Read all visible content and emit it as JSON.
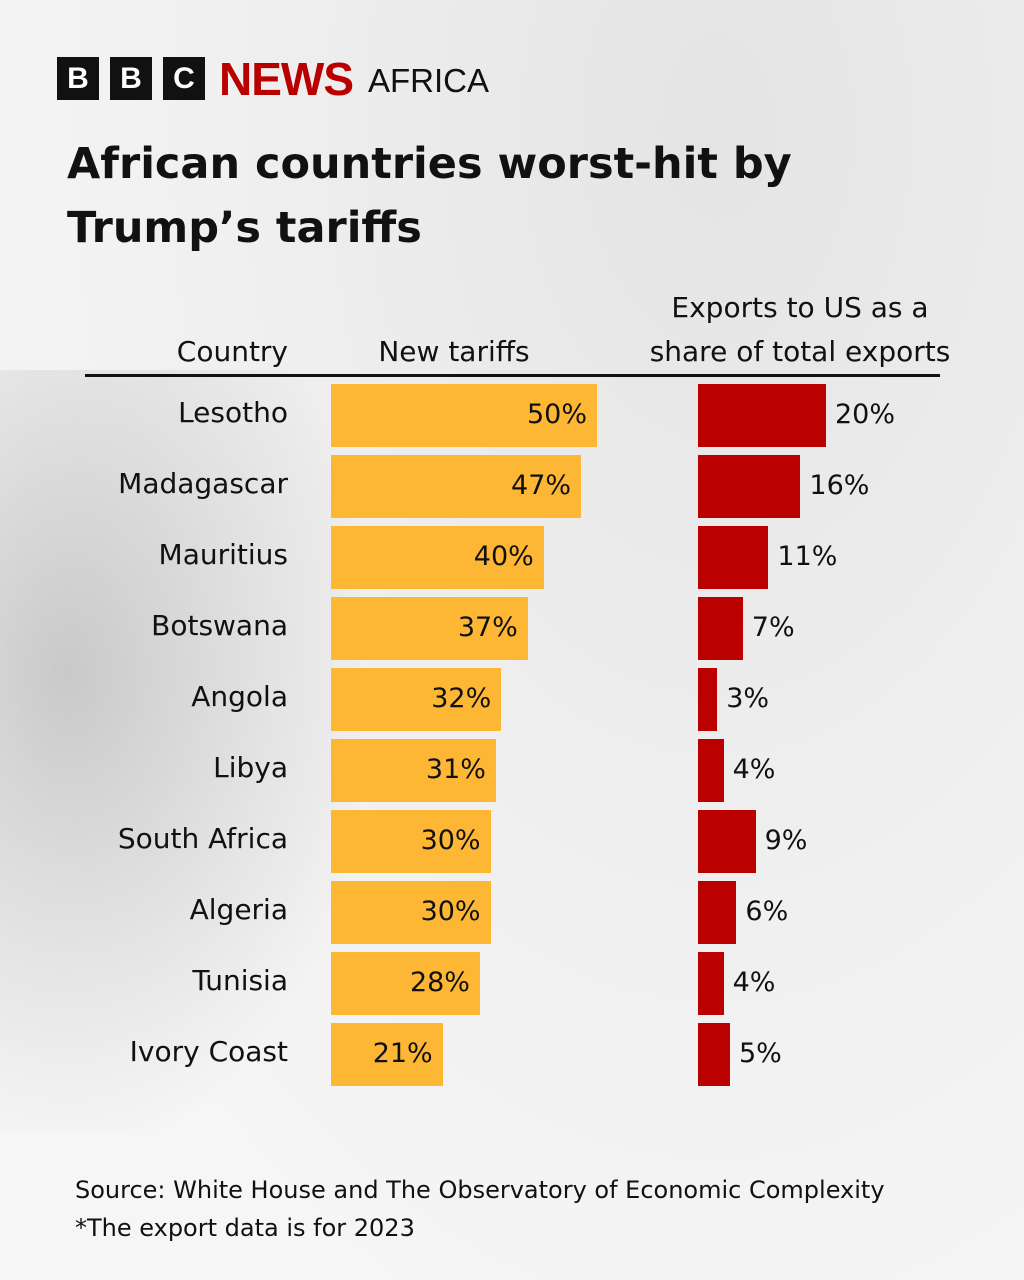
{
  "brand": {
    "b1": "B",
    "b2": "B",
    "b3": "C",
    "news": "NEWS",
    "region": "AFRICA"
  },
  "chart_data": {
    "type": "bar",
    "title": "African countries worst-hit by Trump’s tariffs",
    "headers": {
      "country": "Country",
      "tariffs": "New tariffs",
      "exports_line1": "Exports to US as a",
      "exports_line2": "share of total exports"
    },
    "categories": [
      "Lesotho",
      "Madagascar",
      "Mauritius",
      "Botswana",
      "Angola",
      "Libya",
      "South Africa",
      "Algeria",
      "Tunisia",
      "Ivory Coast"
    ],
    "series": [
      {
        "name": "New tariffs",
        "unit": "%",
        "color": "#fdb734",
        "values": [
          50,
          47,
          40,
          37,
          32,
          31,
          30,
          30,
          28,
          21
        ]
      },
      {
        "name": "Exports to US as a share of total exports",
        "unit": "%",
        "color": "#bb0000",
        "values": [
          20,
          16,
          11,
          7,
          3,
          4,
          9,
          6,
          4,
          5
        ]
      }
    ],
    "source": "Source: White House and The Observatory of Economic Complexity",
    "note": "*The export data is for 2023"
  }
}
